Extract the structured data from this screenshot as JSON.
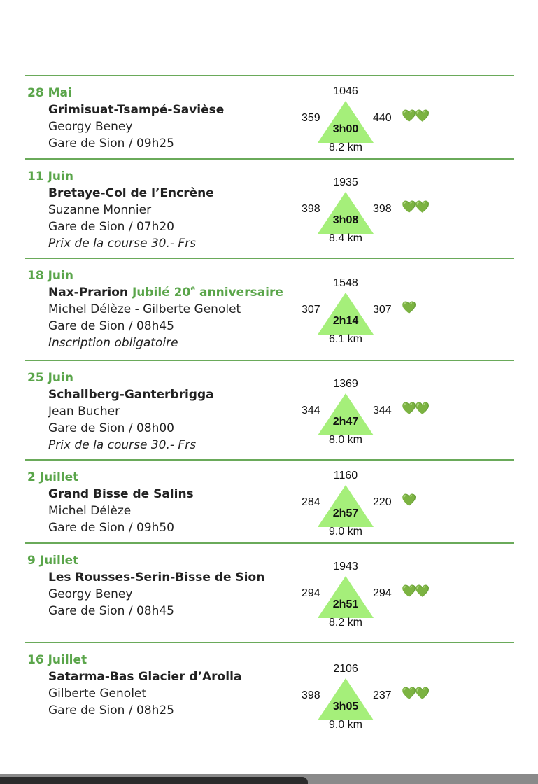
{
  "colors": {
    "accent": "#5aa54a",
    "triangle": "#a5ef7a",
    "heart": "#6ccf3a"
  },
  "heart_icon": "green-heart",
  "hikes": [
    {
      "date": "28 Mai",
      "title": "Grimisuat-Tsampé-Savièse",
      "title_extra": "",
      "title_extra_sup": "",
      "title_extra_rest": "",
      "leader": "Georgy Beney",
      "meeting": "Gare de Sion / 09h25",
      "note": "",
      "peak": "1046",
      "ascent": "359",
      "descent": "440",
      "duration": "3h00",
      "distance": "8.2 km",
      "hearts": "💚💚",
      "difficulty": 2
    },
    {
      "date": "11 Juin",
      "title": "Bretaye-Col de l’Encrène",
      "title_extra": "",
      "title_extra_sup": "",
      "title_extra_rest": "",
      "leader": "Suzanne Monnier",
      "meeting": "Gare de Sion / 07h20",
      "note": "Prix de la course 30.- Frs",
      "peak": "1935",
      "ascent": "398",
      "descent": "398",
      "duration": "3h08",
      "distance": "8.4 km",
      "hearts": "💚💚",
      "difficulty": 2
    },
    {
      "date": "18 Juin",
      "title": "Nax-Prarion ",
      "title_extra": "Jubilé 20",
      "title_extra_sup": "e",
      "title_extra_rest": " anniversaire",
      "leader": "Michel Délèze - Gilberte Genolet",
      "meeting": "Gare de Sion / 08h45",
      "note": "Inscription obligatoire",
      "peak": "1548",
      "ascent": "307",
      "descent": "307",
      "duration": "2h14",
      "distance": "6.1 km",
      "hearts": "💚",
      "difficulty": 1
    },
    {
      "date": "25 Juin",
      "title": "Schallberg-Ganterbrigga",
      "title_extra": "",
      "title_extra_sup": "",
      "title_extra_rest": "",
      "leader": "Jean Bucher",
      "meeting": "Gare de Sion / 08h00",
      "note": "Prix de la course 30.- Frs",
      "peak": "1369",
      "ascent": "344",
      "descent": "344",
      "duration": "2h47",
      "distance": "8.0 km",
      "hearts": "💚💚",
      "difficulty": 2
    },
    {
      "date": "2 Juillet",
      "title": "Grand Bisse de Salins",
      "title_extra": "",
      "title_extra_sup": "",
      "title_extra_rest": "",
      "leader": "Michel Délèze",
      "meeting": "Gare de Sion / 09h50",
      "note": "",
      "peak": "1160",
      "ascent": "284",
      "descent": "220",
      "duration": "2h57",
      "distance": "9.0 km",
      "hearts": "💚",
      "difficulty": 1
    },
    {
      "date": "9 Juillet",
      "title": "Les Rousses-Serin-Bisse de Sion",
      "title_extra": "",
      "title_extra_sup": "",
      "title_extra_rest": "",
      "leader": "Georgy Beney",
      "meeting": "Gare de Sion / 08h45",
      "note": "",
      "peak": "1943",
      "ascent": "294",
      "descent": "294",
      "duration": "2h51",
      "distance": "8.2 km",
      "hearts": "💚💚",
      "difficulty": 2
    },
    {
      "date": "16 Juillet",
      "title": "Satarma-Bas Glacier d’Arolla",
      "title_extra": "",
      "title_extra_sup": "",
      "title_extra_rest": "",
      "leader": "Gilberte Genolet",
      "meeting": "Gare de Sion / 08h25",
      "note": "",
      "peak": "2106",
      "ascent": "398",
      "descent": "237",
      "duration": "3h05",
      "distance": "9.0 km",
      "hearts": "💚💚",
      "difficulty": 2
    }
  ]
}
